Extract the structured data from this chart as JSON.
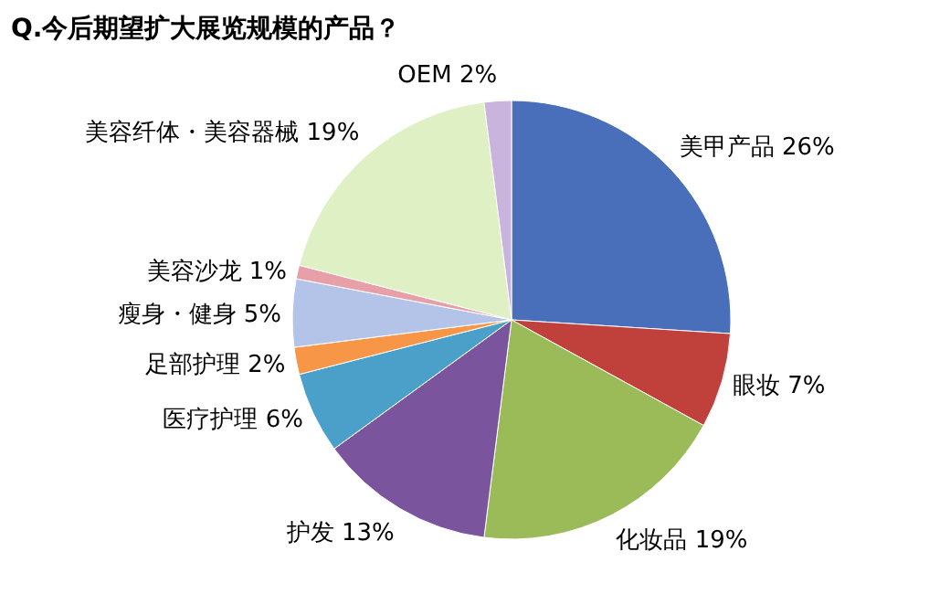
{
  "chart_data": {
    "type": "pie",
    "title": "Q.今后期望扩大展览规模的产品？",
    "categories": [
      "美甲产品",
      "眼妆",
      "化妆品",
      "护发",
      "医疗护理",
      "足部护理",
      "瘦身・健身",
      "美容沙龙",
      "美容纤体・美容器械",
      "OEM"
    ],
    "values": [
      26,
      7,
      19,
      13,
      6,
      2,
      5,
      1,
      19,
      2
    ],
    "value_labels": [
      "26%",
      "7%",
      "19%",
      "13%",
      "6%",
      "2%",
      "5%",
      "1%",
      "19%",
      "2%"
    ],
    "colors": [
      "#4a6fba",
      "#c0403c",
      "#9bbb59",
      "#7a559e",
      "#4aa0c8",
      "#f79646",
      "#b4c4e8",
      "#e8a0a8",
      "#dff0c4",
      "#c8b4dc"
    ]
  }
}
